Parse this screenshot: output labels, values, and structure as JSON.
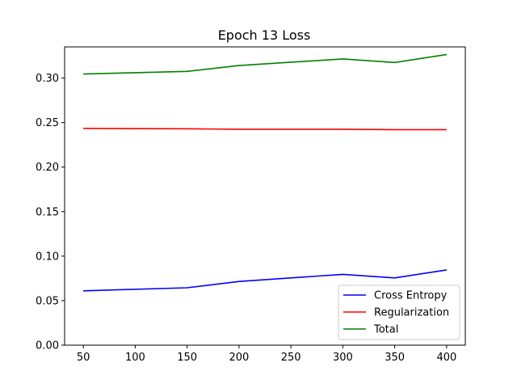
{
  "chart_data": {
    "type": "line",
    "title": "Epoch 13 Loss",
    "xlabel": "",
    "ylabel": "",
    "x": [
      50,
      100,
      150,
      200,
      250,
      300,
      350,
      400
    ],
    "xlim": [
      32,
      418
    ],
    "ylim": [
      0.0,
      0.335
    ],
    "xticks": [
      "50",
      "100",
      "150",
      "200",
      "250",
      "300",
      "350",
      "400"
    ],
    "yticks": [
      "0.00",
      "0.05",
      "0.10",
      "0.15",
      "0.20",
      "0.25",
      "0.30"
    ],
    "legend_position": "lower-right",
    "grid": false,
    "series": [
      {
        "name": "Cross Entropy",
        "color": "#0000ff",
        "x": [
          50,
          150,
          200,
          300,
          350,
          400
        ],
        "values": [
          0.061,
          0.0645,
          0.0715,
          0.0795,
          0.0755,
          0.0845
        ]
      },
      {
        "name": "Regularization",
        "color": "#ff0000",
        "x": [
          50,
          150,
          200,
          300,
          350,
          400
        ],
        "values": [
          0.2435,
          0.243,
          0.2425,
          0.2425,
          0.242,
          0.242
        ]
      },
      {
        "name": "Total",
        "color": "#008000",
        "x": [
          50,
          150,
          200,
          300,
          350,
          400
        ],
        "values": [
          0.3045,
          0.3075,
          0.314,
          0.3215,
          0.3175,
          0.3265
        ]
      }
    ]
  }
}
